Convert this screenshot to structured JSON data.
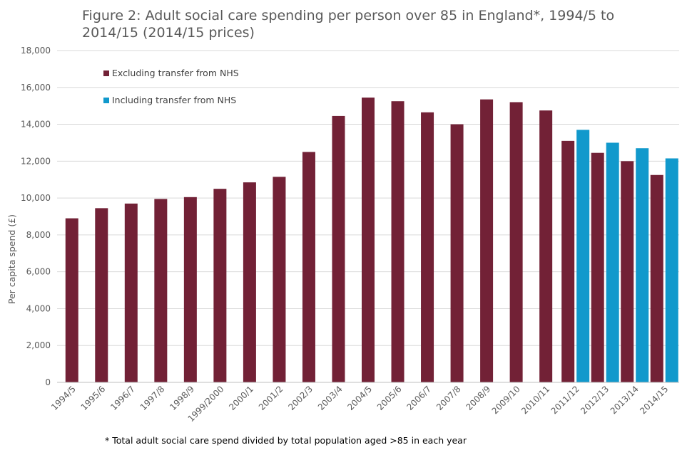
{
  "chart_data": {
    "type": "bar",
    "title": "Figure 2: Adult social care spending per person over 85 in England*, 1994/5 to 2014/15 (2014/15 prices)",
    "xlabel": "",
    "ylabel": "Per capita spend (£)",
    "ylim": [
      0,
      18000
    ],
    "yticks": [
      0,
      2000,
      4000,
      6000,
      8000,
      10000,
      12000,
      14000,
      16000,
      18000
    ],
    "ytick_labels": [
      "0",
      "2,000",
      "4,000",
      "6,000",
      "8,000",
      "10,000",
      "12,000",
      "14,000",
      "16,000",
      "18,000"
    ],
    "grid": true,
    "legend_position": "top-left",
    "categories": [
      "1994/5",
      "1995/6",
      "1996/7",
      "1997/8",
      "1998/9",
      "1999/2000",
      "2000/1",
      "2001/2",
      "2002/3",
      "2003/4",
      "2004/5",
      "2005/6",
      "2006/7",
      "2007/8",
      "2008/9",
      "2009/10",
      "2010/11",
      "2011/12",
      "2012/13",
      "2013/14",
      "2014/15"
    ],
    "series": [
      {
        "name": "Excluding transfer from NHS",
        "color": "#722136",
        "values": [
          8900,
          9450,
          9700,
          9950,
          10050,
          10500,
          10850,
          11150,
          12500,
          14450,
          15450,
          15250,
          14650,
          14000,
          15350,
          15200,
          14750,
          13100,
          12450,
          12000,
          11250
        ]
      },
      {
        "name": "Including transfer from NHS",
        "color": "#1199CC",
        "values": [
          null,
          null,
          null,
          null,
          null,
          null,
          null,
          null,
          null,
          null,
          null,
          null,
          null,
          null,
          null,
          null,
          null,
          13700,
          13000,
          12700,
          12150
        ]
      }
    ]
  },
  "footnote": "* Total adult social care spend divided by total population aged >85 in each year"
}
